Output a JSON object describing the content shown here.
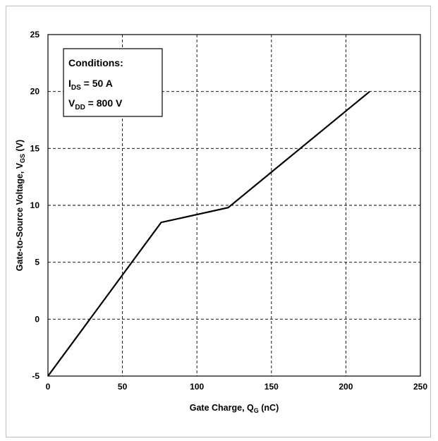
{
  "chart_data": {
    "type": "line",
    "xlabel": {
      "main": "Gate Charge, Q",
      "sub": "G",
      "unit": " (nC)"
    },
    "ylabel": {
      "main": "Gate-to-Source Voltage, V",
      "sub": "GS",
      "unit": " (V)"
    },
    "xlim": [
      0,
      250
    ],
    "ylim": [
      -5,
      25
    ],
    "xticks": [
      0,
      50,
      100,
      150,
      200,
      250
    ],
    "yticks": [
      -5,
      0,
      5,
      10,
      15,
      20,
      25
    ],
    "grid": true,
    "series": [
      {
        "x": [
          0,
          76,
          121,
          216
        ],
        "y": [
          -5,
          8.5,
          9.8,
          20
        ]
      }
    ],
    "annotation": {
      "title": "Conditions:",
      "line1": {
        "main": "I",
        "sub": "DS",
        "rest": " = 50 A"
      },
      "line2": {
        "main": "V",
        "sub": "DD",
        "rest": " = 800 V"
      }
    }
  }
}
